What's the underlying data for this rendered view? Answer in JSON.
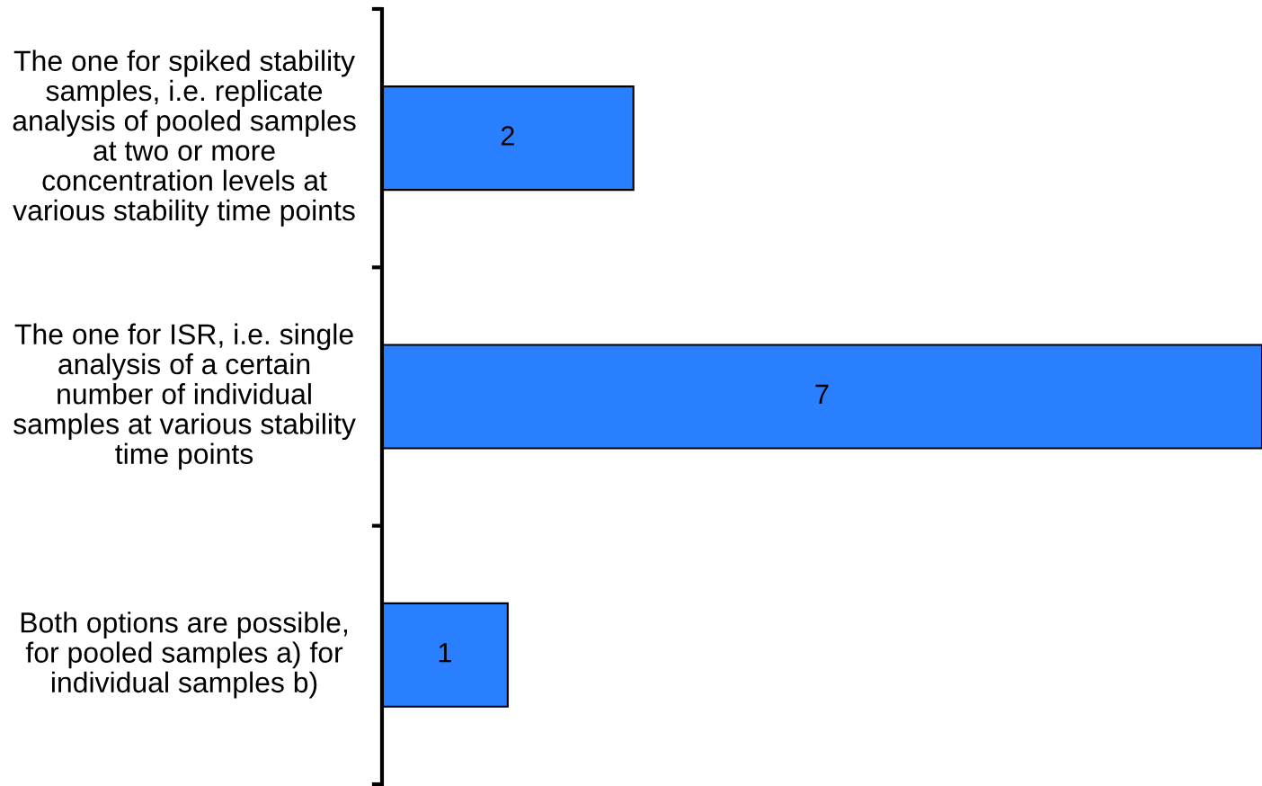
{
  "chart_data": {
    "type": "bar",
    "orientation": "horizontal",
    "categories": [
      "The one for spiked stability\nsamples, i.e. replicate\nanalysis of pooled samples\nat two or more\nconcentration levels at\nvarious stability time points",
      "The one for ISR, i.e. single\nanalysis of a certain\nnumber of individual\nsamples at various stability\ntime points",
      "Both options are possible,\nfor pooled samples a) for\nindividual samples b)"
    ],
    "values": [
      2,
      7,
      1
    ],
    "color": "#2a7fff",
    "xlim": [
      0,
      7
    ],
    "data_labels": true,
    "tick_labels": "y",
    "grid": false,
    "legend": false
  }
}
